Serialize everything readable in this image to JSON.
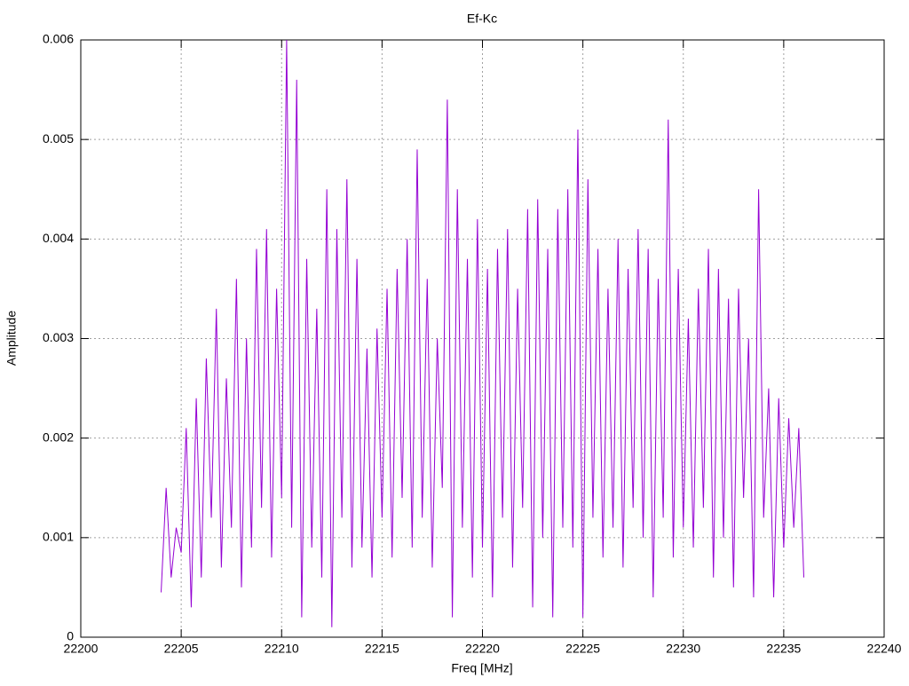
{
  "chart_data": {
    "type": "line",
    "title": "Ef-Kc",
    "xlabel": "Freq [MHz]",
    "ylabel": "Amplitude",
    "xlim": [
      22200,
      22240
    ],
    "xticks": [
      22200,
      22205,
      22210,
      22215,
      22220,
      22225,
      22230,
      22235,
      22240
    ],
    "ylim": [
      0,
      0.006
    ],
    "yticks": [
      0,
      0.001,
      0.002,
      0.003,
      0.004,
      0.005,
      0.006
    ],
    "grid": true,
    "series": [
      {
        "color": "#9400d3",
        "x": [
          22204,
          22204.25,
          22204.5,
          22204.75,
          22205,
          22205.25,
          22205.5,
          22205.75,
          22206,
          22206.25,
          22206.5,
          22206.75,
          22207,
          22207.25,
          22207.5,
          22207.75,
          22208,
          22208.25,
          22208.5,
          22208.75,
          22209,
          22209.25,
          22209.5,
          22209.75,
          22210,
          22210.25,
          22210.5,
          22210.75,
          22211,
          22211.25,
          22211.5,
          22211.75,
          22212,
          22212.25,
          22212.5,
          22212.75,
          22213,
          22213.25,
          22213.5,
          22213.75,
          22214,
          22214.25,
          22214.5,
          22214.75,
          22215,
          22215.25,
          22215.5,
          22215.75,
          22216,
          22216.25,
          22216.5,
          22216.75,
          22217,
          22217.25,
          22217.5,
          22217.75,
          22218,
          22218.25,
          22218.5,
          22218.75,
          22219,
          22219.25,
          22219.5,
          22219.75,
          22220,
          22220.25,
          22220.5,
          22220.75,
          22221,
          22221.25,
          22221.5,
          22221.75,
          22222,
          22222.25,
          22222.5,
          22222.75,
          22223,
          22223.25,
          22223.5,
          22223.75,
          22224,
          22224.25,
          22224.5,
          22224.75,
          22225,
          22225.25,
          22225.5,
          22225.75,
          22226,
          22226.25,
          22226.5,
          22226.75,
          22227,
          22227.25,
          22227.5,
          22227.75,
          22228,
          22228.25,
          22228.5,
          22228.75,
          22229,
          22229.25,
          22229.5,
          22229.75,
          22230,
          22230.25,
          22230.5,
          22230.75,
          22231,
          22231.25,
          22231.5,
          22231.75,
          22232,
          22232.25,
          22232.5,
          22232.75,
          22233,
          22233.25,
          22233.5,
          22233.75,
          22234,
          22234.25,
          22234.5,
          22234.75,
          22235,
          22235.25,
          22235.5,
          22235.75,
          22236
        ],
        "values": [
          0.00045,
          0.0015,
          0.0006,
          0.0011,
          0.00085,
          0.0021,
          0.0003,
          0.0024,
          0.0006,
          0.0028,
          0.0012,
          0.0033,
          0.0007,
          0.0026,
          0.0011,
          0.0036,
          0.0005,
          0.003,
          0.0009,
          0.0039,
          0.0013,
          0.0041,
          0.0008,
          0.0035,
          0.0014,
          0.006,
          0.0011,
          0.0056,
          0.0002,
          0.0038,
          0.0009,
          0.0033,
          0.0006,
          0.0045,
          0.0001,
          0.0041,
          0.0012,
          0.0046,
          0.0007,
          0.0038,
          0.0009,
          0.0029,
          0.0006,
          0.0031,
          0.0012,
          0.0035,
          0.0008,
          0.0037,
          0.0014,
          0.004,
          0.0009,
          0.0049,
          0.0012,
          0.0036,
          0.0007,
          0.003,
          0.0015,
          0.0054,
          0.0002,
          0.0045,
          0.0011,
          0.0038,
          0.0006,
          0.0042,
          0.0009,
          0.0037,
          0.0004,
          0.0039,
          0.0012,
          0.0041,
          0.0007,
          0.0035,
          0.0013,
          0.0043,
          0.0003,
          0.0044,
          0.001,
          0.0039,
          0.0002,
          0.0043,
          0.0011,
          0.0045,
          0.0009,
          0.0051,
          0.0002,
          0.0046,
          0.0012,
          0.0039,
          0.0008,
          0.0035,
          0.0011,
          0.004,
          0.0007,
          0.0037,
          0.0013,
          0.0041,
          0.001,
          0.0039,
          0.0004,
          0.0036,
          0.0012,
          0.0052,
          0.0008,
          0.0037,
          0.0011,
          0.0032,
          0.0009,
          0.0035,
          0.0013,
          0.0039,
          0.0006,
          0.0037,
          0.001,
          0.0034,
          0.0005,
          0.0035,
          0.0014,
          0.003,
          0.0004,
          0.0045,
          0.0012,
          0.0025,
          0.0004,
          0.0024,
          0.0009,
          0.0022,
          0.0011,
          0.0021,
          0.0006
        ]
      }
    ]
  }
}
